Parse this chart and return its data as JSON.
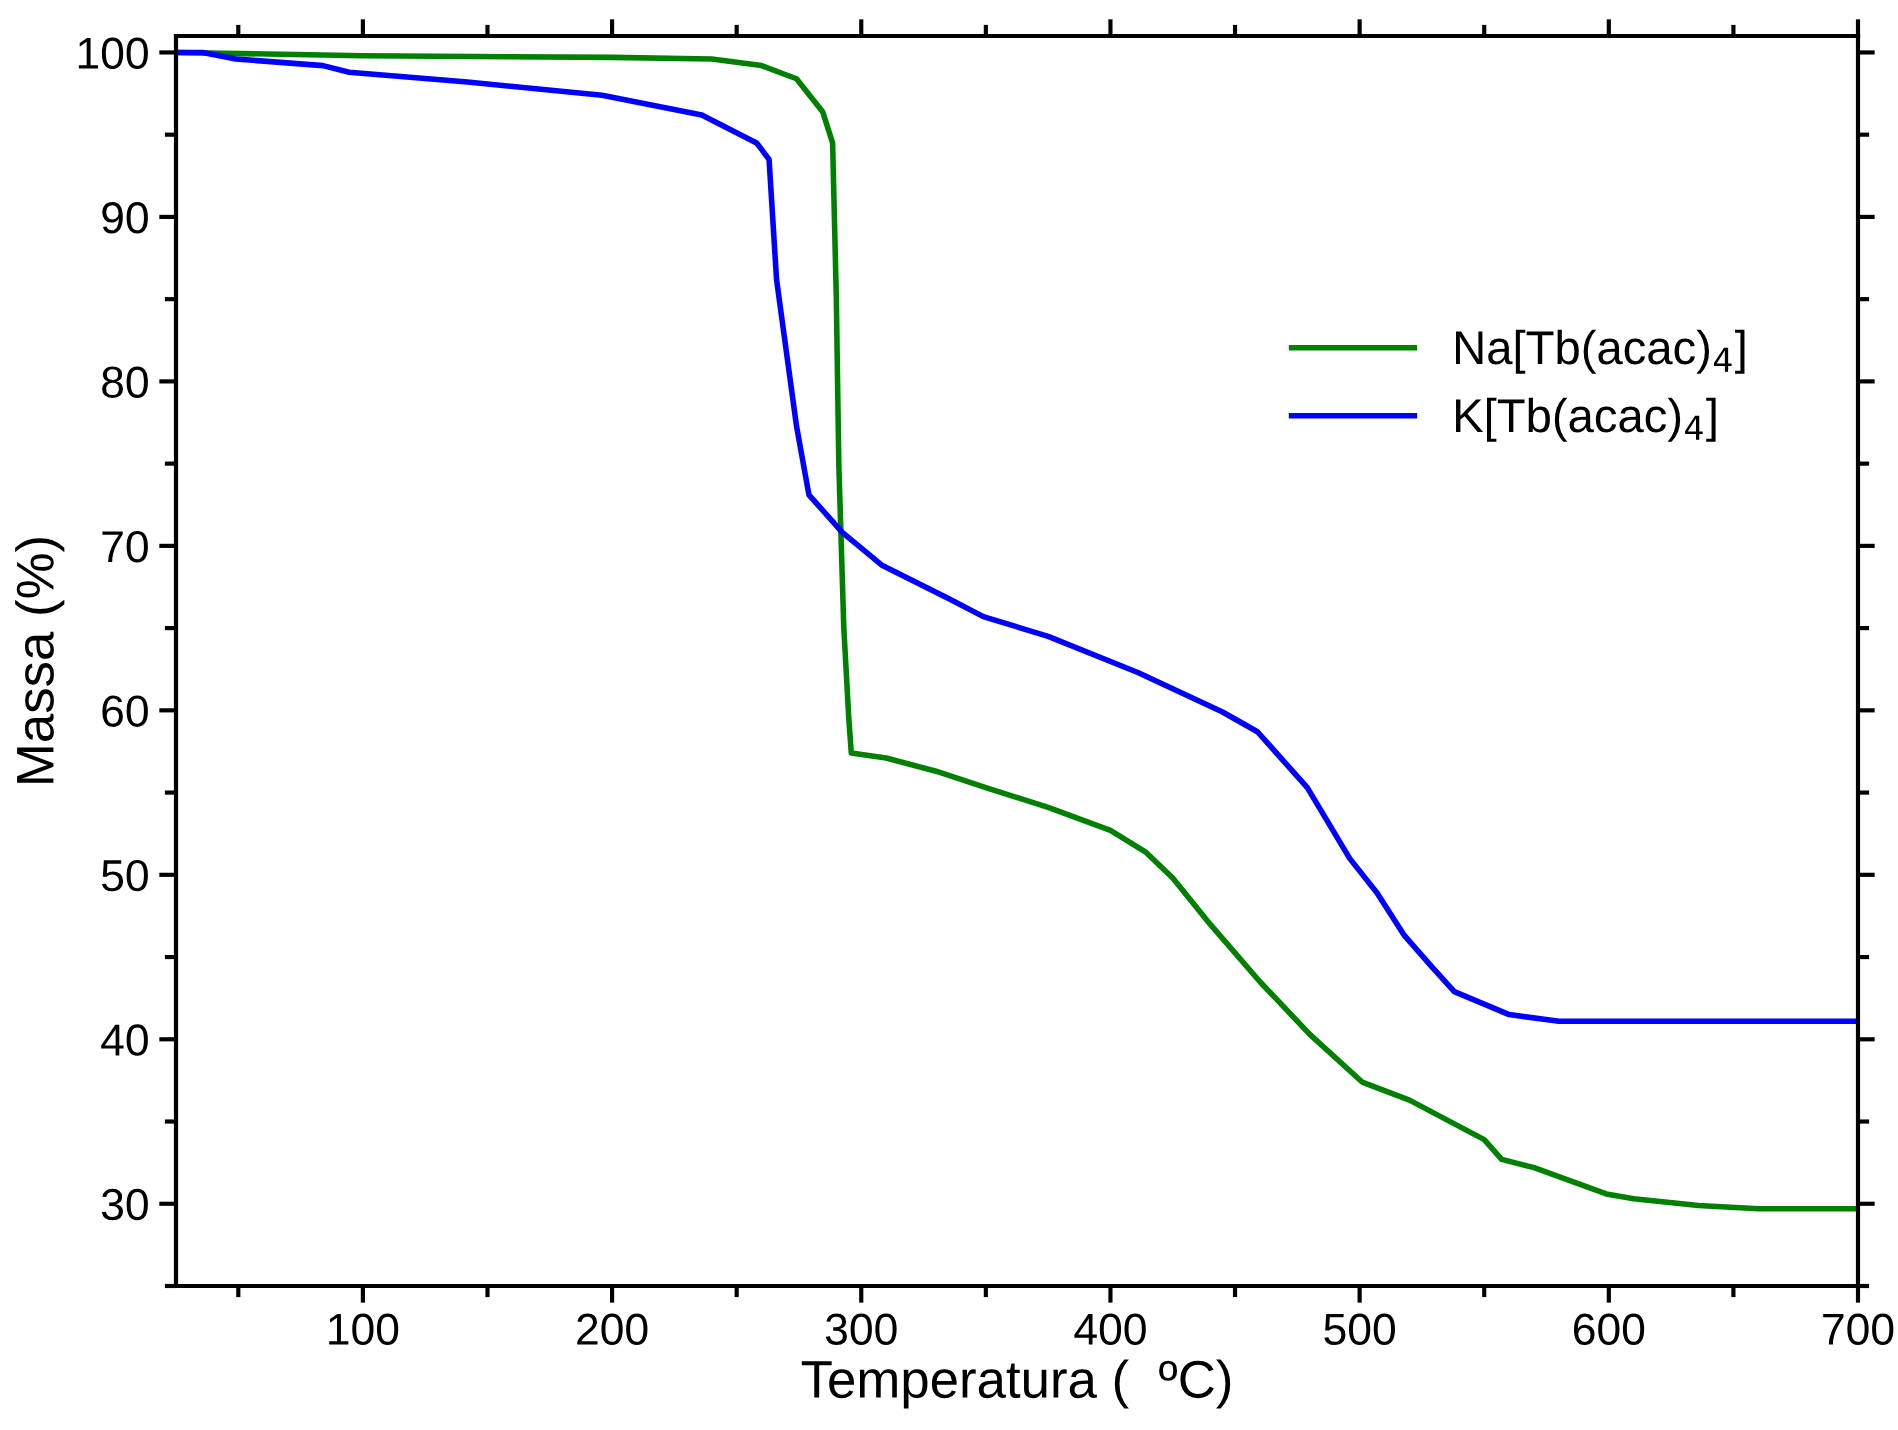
{
  "chart_data": {
    "type": "line",
    "xlabel": "Temperatura (  ºC)",
    "ylabel": "Massa (%)",
    "xlim": [
      25,
      700
    ],
    "ylim": [
      25,
      101
    ],
    "xticks": [
      100,
      200,
      300,
      400,
      500,
      600,
      700
    ],
    "yticks": [
      30,
      40,
      50,
      60,
      70,
      80,
      90,
      100
    ],
    "grid": false,
    "legend": "right",
    "line_style": "solid",
    "marker": "none",
    "series": [
      {
        "name": "Na[Tb(acac)$_{4}$]",
        "color": "#008000",
        "x": [
          25,
          100,
          200,
          240,
          260,
          274,
          284.5,
          288.5,
          290,
          291,
          293,
          295,
          296,
          310,
          330,
          350,
          375,
          400,
          414,
          425,
          440,
          460,
          480,
          501,
          520,
          550,
          557,
          570,
          599,
          610,
          636,
          660,
          698,
          700
        ],
        "values": [
          100,
          99.8,
          99.7,
          99.6,
          99.2,
          98.4,
          96.4,
          94.5,
          85,
          74.9,
          65,
          59.5,
          57.4,
          57.1,
          56.3,
          55.3,
          54.1,
          52.7,
          51.4,
          49.8,
          47,
          43.5,
          40.3,
          37.4,
          36.3,
          33.9,
          32.7,
          32.2,
          30.6,
          30.3,
          29.9,
          29.7,
          29.7,
          29.7
        ]
      },
      {
        "name": "K[Tb(acac)$_{4}$]",
        "color": "#0000ff",
        "x": [
          25,
          35.7,
          49,
          84,
          94.5,
          142,
          196,
          236,
          258,
          263,
          266,
          274,
          279,
          292.5,
          308.5,
          335,
          349,
          375,
          411,
          445,
          459,
          479,
          496,
          507,
          518,
          529,
          538,
          560,
          580,
          700
        ],
        "values": [
          100,
          100,
          99.6,
          99.2,
          98.8,
          98.2,
          97.4,
          96.2,
          94.5,
          93.5,
          86.2,
          77.3,
          73.1,
          70.8,
          68.8,
          66.8,
          65.7,
          64.5,
          62.3,
          59.9,
          58.7,
          55.3,
          51.0,
          48.9,
          46.3,
          44.4,
          42.9,
          41.5,
          41.1,
          41.1
        ]
      }
    ]
  }
}
